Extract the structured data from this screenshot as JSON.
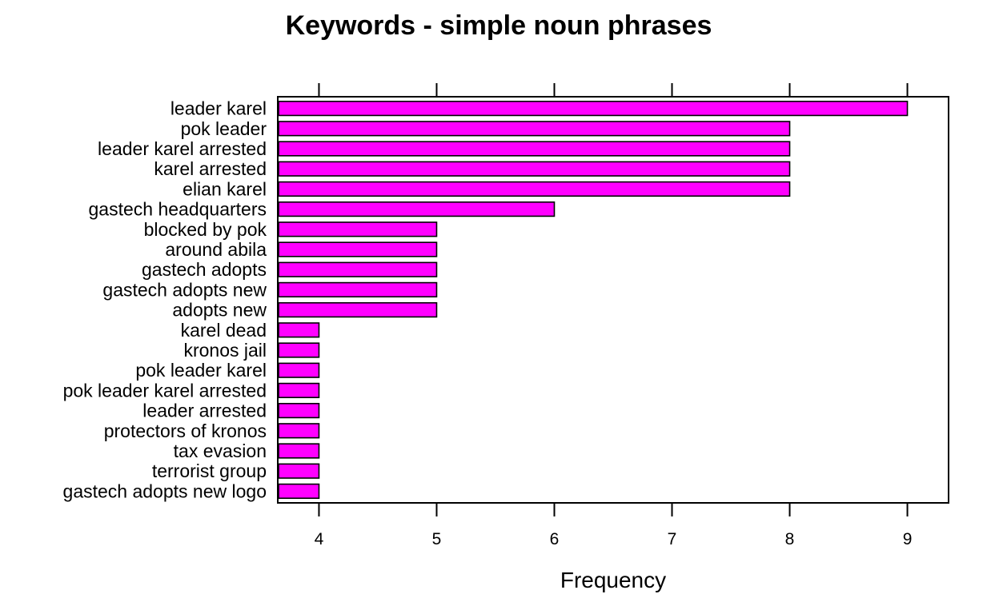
{
  "chart_data": {
    "type": "bar",
    "orientation": "horizontal",
    "title": "Keywords - simple noun phrases",
    "xlabel": "Frequency",
    "ylabel": "",
    "xlim": [
      3.65,
      9.35
    ],
    "xticks": [
      4,
      5,
      6,
      7,
      8,
      9
    ],
    "grid": false,
    "legend": "none",
    "bar_color": "#FF00FF",
    "bar_stroke": "#000000",
    "categories": [
      "leader karel",
      "pok leader",
      "leader karel arrested",
      "karel arrested",
      "elian karel",
      "gastech headquarters",
      "blocked by pok",
      "around abila",
      "gastech adopts",
      "gastech adopts new",
      "adopts new",
      "karel dead",
      "kronos jail",
      "pok leader karel",
      "pok leader karel arrested",
      "leader arrested",
      "protectors of kronos",
      "tax evasion",
      "terrorist group",
      "gastech adopts new logo"
    ],
    "values": [
      9,
      8,
      8,
      8,
      8,
      6,
      5,
      5,
      5,
      5,
      5,
      4,
      4,
      4,
      4,
      4,
      4,
      4,
      4,
      4
    ]
  }
}
